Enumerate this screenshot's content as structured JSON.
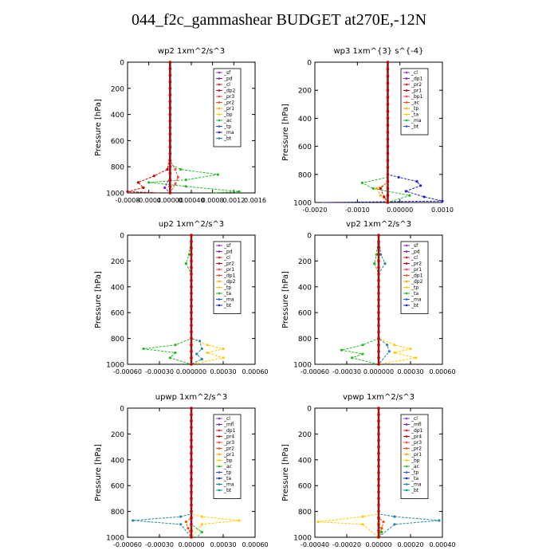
{
  "title": "044_f2c_gammashear  BUDGET at270E,-12N",
  "chart_data": [
    {
      "type": "line",
      "title": "wp2   1xm^2/s^3",
      "ylabel": "Pressure [hPa]",
      "xlim": [
        -0.0008,
        0.0016
      ],
      "ylim": [
        1000,
        0
      ],
      "xticks": [
        "-0.0008",
        "-0.0004",
        "0.00000",
        "0.00040",
        "0.0008",
        "0.0012",
        "0.0016"
      ],
      "yticks": [
        "0",
        "200",
        "400",
        "600",
        "800",
        "1000"
      ],
      "legend": [
        "_sf",
        "_pd",
        "_cl",
        "_dp2",
        "_pr3",
        "_pr2",
        "_pr1",
        "_bp",
        "_ac",
        "_tp",
        "_ma",
        "_bt"
      ],
      "legend_position": "inside-right",
      "series": [
        {
          "name": "_dp2",
          "color": "#cc0000",
          "points": [
            [
              0,
              0
            ],
            [
              0,
              700
            ],
            [
              -5e-05,
              820
            ],
            [
              -0.0003,
              870
            ],
            [
              -0.0006,
              920
            ],
            [
              -0.0005,
              960
            ],
            [
              -0.0008,
              990
            ],
            [
              -0.0002,
              1000
            ]
          ]
        },
        {
          "name": "_pr2",
          "color": "#ff4444",
          "points": [
            [
              0,
              0
            ],
            [
              0,
              750
            ],
            [
              0.0001,
              820
            ],
            [
              0.00015,
              880
            ],
            [
              0.0001,
              930
            ],
            [
              0,
              1000
            ]
          ]
        },
        {
          "name": "_bp",
          "color": "#22bb22",
          "points": [
            [
              0,
              0
            ],
            [
              0,
              780
            ],
            [
              0.0002,
              820
            ],
            [
              0.0009,
              860
            ],
            [
              0.0003,
              900
            ],
            [
              -0.0004,
              920
            ],
            [
              0.0003,
              950
            ],
            [
              0.0013,
              990
            ],
            [
              0.0008,
              1000
            ]
          ]
        },
        {
          "name": "_ac",
          "color": "#2255ff",
          "points": [
            [
              0,
              0
            ],
            [
              0,
              1000
            ]
          ]
        },
        {
          "name": "_pd",
          "color": "#7722cc",
          "points": [
            [
              0,
              0
            ],
            [
              0,
              880
            ],
            [
              -0.0001,
              960
            ],
            [
              0,
              1000
            ]
          ]
        },
        {
          "name": "_bt",
          "color": "#00cccc",
          "points": [
            [
              0,
              0
            ],
            [
              0,
              1000
            ]
          ]
        }
      ]
    },
    {
      "type": "line",
      "title": "wp3   1xm^{3} s^{-4}",
      "ylabel": "Pressure [hPa]",
      "xlim": [
        -0.002,
        0.0015
      ],
      "ylim": [
        1000,
        0
      ],
      "xticks": [
        "-0.0020",
        "-0.0010",
        "0.00000",
        "0.0010"
      ],
      "yticks": [
        "0",
        "200",
        "400",
        "600",
        "800",
        "1000"
      ],
      "legend": [
        "_cl",
        "_dp1",
        "_pr2",
        "_pr1",
        "_bp1",
        "_ac",
        "_tp",
        "_ta",
        "_ma",
        "_bt"
      ],
      "legend_position": "inside-right",
      "series": [
        {
          "name": "_tp",
          "color": "#2222cc",
          "points": [
            [
              0,
              0
            ],
            [
              0,
              800
            ],
            [
              0.0003,
              820
            ],
            [
              0.0008,
              850
            ],
            [
              0.0009,
              880
            ],
            [
              0.0005,
              920
            ],
            [
              0.001,
              960
            ],
            [
              0.0015,
              990
            ],
            [
              -0.0018,
              1000
            ]
          ]
        },
        {
          "name": "_ac",
          "color": "#22bb22",
          "points": [
            [
              0,
              0
            ],
            [
              0,
              820
            ],
            [
              -0.0007,
              860
            ],
            [
              -0.0004,
              900
            ],
            [
              0.0006,
              950
            ],
            [
              0,
              1000
            ]
          ]
        },
        {
          "name": "_dp1",
          "color": "#cc0000",
          "points": [
            [
              0,
              0
            ],
            [
              0,
              850
            ],
            [
              -0.0002,
              900
            ],
            [
              -0.0001,
              960
            ],
            [
              0,
              1000
            ]
          ]
        },
        {
          "name": "_pr2",
          "color": "#ffaa00",
          "points": [
            [
              0,
              0
            ],
            [
              0,
              860
            ],
            [
              -0.0003,
              900
            ],
            [
              -0.0002,
              950
            ],
            [
              0,
              1000
            ]
          ]
        },
        {
          "name": "_bt",
          "color": "#00cccc",
          "points": [
            [
              0,
              0
            ],
            [
              0,
              1000
            ]
          ]
        }
      ]
    },
    {
      "type": "line",
      "title": "up2   1xm^2/s^3",
      "ylabel": "Pressure [hPa]",
      "xlim": [
        -0.0006,
        0.0006
      ],
      "ylim": [
        1000,
        0
      ],
      "xticks": [
        "-0.00060",
        "-0.00030",
        "0.000000",
        "0.00030",
        "0.00060"
      ],
      "yticks": [
        "0",
        "200",
        "400",
        "600",
        "800",
        "1000"
      ],
      "legend": [
        "_sf",
        "_pd",
        "_cl",
        "_pr2",
        "_pr1",
        "_dp1",
        "_dp2",
        "_tp",
        "_ta",
        "_ma",
        "_bt"
      ],
      "legend_position": "inside-right",
      "series": [
        {
          "name": "_dp2",
          "color": "#22bb22",
          "points": [
            [
              0,
              0
            ],
            [
              -2e-05,
              150
            ],
            [
              -5e-05,
              220
            ],
            [
              0,
              300
            ],
            [
              0,
              800
            ],
            [
              -0.00015,
              850
            ],
            [
              -0.00045,
              880
            ],
            [
              -0.00015,
              910
            ],
            [
              -0.0002,
              950
            ],
            [
              0,
              1000
            ]
          ]
        },
        {
          "name": "_pr1",
          "color": "#ffcc00",
          "points": [
            [
              0,
              0
            ],
            [
              0,
              800
            ],
            [
              0.00015,
              850
            ],
            [
              0.0003,
              880
            ],
            [
              0.00015,
              910
            ],
            [
              0.0003,
              950
            ],
            [
              0,
              1000
            ]
          ]
        },
        {
          "name": "_tp",
          "color": "#2288aa",
          "points": [
            [
              0,
              0
            ],
            [
              0,
              800
            ],
            [
              8e-05,
              820
            ],
            [
              0.0001,
              880
            ],
            [
              5e-05,
              920
            ],
            [
              0.0001,
              960
            ],
            [
              0,
              1000
            ]
          ]
        },
        {
          "name": "_pd",
          "color": "#cc0000",
          "points": [
            [
              0,
              0
            ],
            [
              0,
              1000
            ]
          ]
        },
        {
          "name": "_bt",
          "color": "#00cccc",
          "points": [
            [
              0,
              0
            ],
            [
              0,
              1000
            ]
          ]
        }
      ]
    },
    {
      "type": "line",
      "title": "vp2   1xm^2/s^3",
      "ylabel": "Pressure [hPa]",
      "xlim": [
        -0.0006,
        0.0006
      ],
      "ylim": [
        1000,
        0
      ],
      "xticks": [
        "-0.00060",
        "-0.00030",
        "0.000000",
        "0.00030",
        "0.00060"
      ],
      "yticks": [
        "0",
        "200",
        "400",
        "600",
        "800",
        "1000"
      ],
      "legend": [
        "_sf",
        "_pd",
        "_cl",
        "_pr2",
        "_pr1",
        "_dp1",
        "_dp2",
        "_tp",
        "_ta",
        "_ma",
        "_bt"
      ],
      "legend_position": "inside-right",
      "series": [
        {
          "name": "_dp2",
          "color": "#22bb22",
          "points": [
            [
              0,
              0
            ],
            [
              -2e-05,
              150
            ],
            [
              -4e-05,
              220
            ],
            [
              0,
              300
            ],
            [
              0,
              800
            ],
            [
              -0.00015,
              850
            ],
            [
              -0.00035,
              890
            ],
            [
              -0.00015,
              920
            ],
            [
              -0.00025,
              950
            ],
            [
              0,
              1000
            ]
          ]
        },
        {
          "name": "_pr1",
          "color": "#ffcc00",
          "points": [
            [
              0,
              0
            ],
            [
              0,
              800
            ],
            [
              0.00015,
              850
            ],
            [
              0.0003,
              880
            ],
            [
              0.00015,
              910
            ],
            [
              0.00035,
              950
            ],
            [
              0,
              1000
            ]
          ]
        },
        {
          "name": "_tp",
          "color": "#2288aa",
          "points": [
            [
              0,
              0
            ],
            [
              2e-05,
              150
            ],
            [
              6e-05,
              220
            ],
            [
              0,
              300
            ],
            [
              0,
              800
            ],
            [
              8e-05,
              850
            ],
            [
              0.0001,
              900
            ],
            [
              0,
              1000
            ]
          ]
        },
        {
          "name": "_pd",
          "color": "#cc0000",
          "points": [
            [
              0,
              0
            ],
            [
              0,
              1000
            ]
          ]
        },
        {
          "name": "_bt",
          "color": "#00cccc",
          "points": [
            [
              0,
              0
            ],
            [
              0,
              1000
            ]
          ]
        }
      ]
    },
    {
      "type": "line",
      "title": "upwp   1xm^2/s^3",
      "ylabel": "Pressure [hPa]",
      "xlim": [
        -0.0006,
        0.0006
      ],
      "ylim": [
        1000,
        0
      ],
      "xticks": [
        "-0.00060",
        "-0.00030",
        "0.00000",
        "0.00030",
        "0.00060"
      ],
      "yticks": [
        "0",
        "200",
        "400",
        "600",
        "800",
        "1000"
      ],
      "legend": [
        "_cl",
        "_mfl",
        "_dp1",
        "_pr4",
        "_pr3",
        "_pr2",
        "_pr1",
        "_bp",
        "_ac",
        "_tp",
        "_ta",
        "_ma",
        "_bt"
      ],
      "legend_position": "inside-right",
      "series": [
        {
          "name": "_tp",
          "color": "#2288aa",
          "points": [
            [
              0,
              0
            ],
            [
              0,
              820
            ],
            [
              -0.0001,
              840
            ],
            [
              -0.00055,
              870
            ],
            [
              -0.0001,
              900
            ],
            [
              0,
              1000
            ]
          ]
        },
        {
          "name": "_pr1",
          "color": "#ffcc00",
          "points": [
            [
              0,
              0
            ],
            [
              0,
              820
            ],
            [
              0.0001,
              840
            ],
            [
              0.00045,
              870
            ],
            [
              0.0001,
              900
            ],
            [
              0,
              1000
            ]
          ]
        },
        {
          "name": "_pr2",
          "color": "#ee5500",
          "points": [
            [
              0,
              0
            ],
            [
              0,
              850
            ],
            [
              -5e-05,
              880
            ],
            [
              -3e-05,
              930
            ],
            [
              0,
              1000
            ]
          ]
        },
        {
          "name": "_bp",
          "color": "#22bb22",
          "points": [
            [
              0,
              0
            ],
            [
              0,
              900
            ],
            [
              0.0001,
              960
            ],
            [
              5e-05,
              1000
            ]
          ]
        },
        {
          "name": "_cl",
          "color": "#9944cc",
          "points": [
            [
              0,
              0
            ],
            [
              0,
              1000
            ]
          ]
        },
        {
          "name": "_bt",
          "color": "#00cccc",
          "points": [
            [
              0,
              0
            ],
            [
              0,
              1000
            ]
          ]
        }
      ]
    },
    {
      "type": "line",
      "title": "vpwp   1xm^2/s^3",
      "ylabel": "Pressure [hPa]",
      "xlim": [
        -0.0004,
        0.0004
      ],
      "ylim": [
        1000,
        0
      ],
      "xticks": [
        "-0.00040",
        "-0.00020",
        "0.00000",
        "0.00020",
        "0.00040"
      ],
      "yticks": [
        "0",
        "200",
        "400",
        "600",
        "800",
        "1000"
      ],
      "legend": [
        "_cl",
        "_mfl",
        "_dp1",
        "_pr4",
        "_pr3",
        "_pr2",
        "_pr1",
        "_bp",
        "_ac",
        "_tp",
        "_ta",
        "_ma",
        "_bt"
      ],
      "legend_position": "inside-right",
      "series": [
        {
          "name": "_tp",
          "color": "#2288aa",
          "points": [
            [
              0,
              0
            ],
            [
              0,
              820
            ],
            [
              0.0001,
              840
            ],
            [
              0.00038,
              870
            ],
            [
              0.0001,
              900
            ],
            [
              0,
              1000
            ]
          ]
        },
        {
          "name": "_pr1",
          "color": "#ffcc00",
          "points": [
            [
              0,
              0
            ],
            [
              0,
              820
            ],
            [
              -0.0001,
              840
            ],
            [
              -0.00038,
              880
            ],
            [
              -0.0001,
              900
            ],
            [
              0,
              1000
            ]
          ]
        },
        {
          "name": "_pr2",
          "color": "#ee5500",
          "points": [
            [
              0,
              0
            ],
            [
              0,
              850
            ],
            [
              3e-05,
              880
            ],
            [
              2e-05,
              930
            ],
            [
              0,
              1000
            ]
          ]
        },
        {
          "name": "_ac",
          "color": "#22bb22",
          "points": [
            [
              0,
              0
            ],
            [
              0,
              900
            ],
            [
              2e-05,
              960
            ],
            [
              0,
              1000
            ]
          ]
        },
        {
          "name": "_cl",
          "color": "#9944cc",
          "points": [
            [
              0,
              0
            ],
            [
              0,
              1000
            ]
          ]
        },
        {
          "name": "_bt",
          "color": "#00cccc",
          "points": [
            [
              0,
              0
            ],
            [
              0,
              1000
            ]
          ]
        }
      ]
    }
  ]
}
